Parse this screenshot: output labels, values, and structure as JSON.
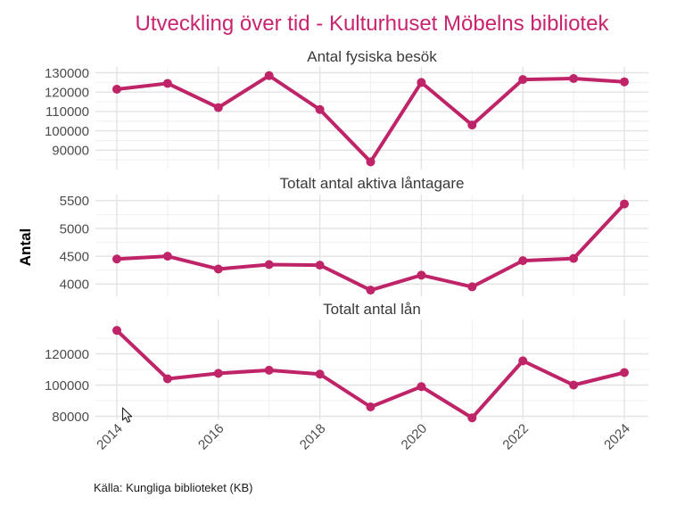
{
  "title": "Utveckling över tid - Kulturhuset Möbelns bibliotek",
  "y_axis_title": "Antal",
  "caption": "Källa: Kungliga biblioteket (KB)",
  "colors": {
    "title": "#C8246F",
    "line": "#BE2467",
    "point": "#BE2467",
    "facet_title": "#3a3a3a",
    "tick_label": "#4d4d4d",
    "axis_title": "#000000",
    "caption": "#1a1a1a",
    "grid_major": "#e3e3e3",
    "grid_minor": "#f0f0f0",
    "background": "#ffffff"
  },
  "x_axis": {
    "tick_labels": [
      "2014",
      "2016",
      "2018",
      "2020",
      "2022",
      "2024"
    ],
    "tick_years": [
      2014,
      2016,
      2018,
      2020,
      2022,
      2024
    ],
    "minor_years": [
      2015,
      2017,
      2019,
      2021,
      2023
    ],
    "xlim": [
      2013.6,
      2024.5
    ]
  },
  "chart_data": [
    {
      "type": "line",
      "title": "Antal fysiska besök",
      "x": [
        2014,
        2015,
        2016,
        2017,
        2018,
        2019,
        2020,
        2021,
        2022,
        2023,
        2024
      ],
      "values": [
        121500,
        124500,
        112000,
        128500,
        111000,
        84000,
        125000,
        103000,
        126500,
        127000,
        125300
      ],
      "y_ticks": [
        90000,
        100000,
        110000,
        120000,
        130000
      ],
      "y_minor": [
        85000,
        95000,
        105000,
        115000,
        125000
      ],
      "ylim": [
        80000,
        133000
      ],
      "grid": true,
      "legend": "none"
    },
    {
      "type": "line",
      "title": "Totalt antal aktiva låntagare",
      "x": [
        2014,
        2015,
        2016,
        2017,
        2018,
        2019,
        2020,
        2021,
        2022,
        2023,
        2024
      ],
      "values": [
        4450,
        4500,
        4270,
        4350,
        4340,
        3890,
        4160,
        3950,
        4420,
        4460,
        5440
      ],
      "y_ticks": [
        4000,
        4500,
        5000,
        5500
      ],
      "y_minor": [
        4250,
        4750,
        5250
      ],
      "ylim": [
        3780,
        5610
      ],
      "grid": true,
      "legend": "none"
    },
    {
      "type": "line",
      "title": "Totalt antal lån",
      "x": [
        2014,
        2015,
        2016,
        2017,
        2018,
        2019,
        2020,
        2021,
        2022,
        2023,
        2024
      ],
      "values": [
        135000,
        104000,
        107500,
        109500,
        107000,
        86000,
        99000,
        79000,
        115500,
        100000,
        108000
      ],
      "y_ticks": [
        80000,
        100000,
        120000
      ],
      "y_minor": [
        90000,
        110000,
        130000
      ],
      "ylim": [
        78000,
        142000
      ],
      "grid": true,
      "legend": "none"
    }
  ]
}
